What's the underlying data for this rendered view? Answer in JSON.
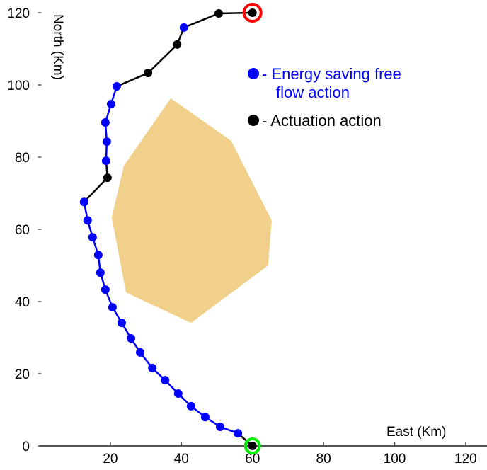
{
  "chart_data": {
    "type": "scatter",
    "xlabel": "East (Km)",
    "ylabel": "North (Km)",
    "xlim": [
      0,
      120
    ],
    "ylim": [
      0,
      120
    ],
    "xticks": [
      20,
      40,
      60,
      80,
      100,
      120
    ],
    "yticks": [
      0,
      20,
      40,
      60,
      80,
      100,
      120
    ],
    "legend": {
      "placement": "top-right",
      "entries": [
        {
          "label": "- Energy saving free",
          "label2": "flow action",
          "color": "#0000ff"
        },
        {
          "label": "- Actuation action",
          "color": "#000000"
        }
      ]
    },
    "start": {
      "x": 60,
      "y": 0,
      "ring_color": "#00ee00"
    },
    "goal": {
      "x": 60,
      "y": 120,
      "ring_color": "#ff0000"
    },
    "obstacle": {
      "color": "#f0d08a",
      "vertices": [
        [
          37,
          96.3
        ],
        [
          54,
          84.5
        ],
        [
          65.4,
          62.5
        ],
        [
          64.4,
          50
        ],
        [
          42.7,
          34.1
        ],
        [
          24.4,
          42.5
        ],
        [
          20.4,
          63.3
        ],
        [
          23.8,
          77.6
        ]
      ]
    },
    "path": [
      {
        "x": 60,
        "y": 0,
        "type": "actuation"
      },
      {
        "x": 55.9,
        "y": 3.5,
        "type": "free"
      },
      {
        "x": 50.9,
        "y": 5.3,
        "type": "free"
      },
      {
        "x": 46.7,
        "y": 8.0,
        "type": "free"
      },
      {
        "x": 42.7,
        "y": 11.0,
        "type": "free"
      },
      {
        "x": 39.1,
        "y": 14.5,
        "type": "free"
      },
      {
        "x": 35.4,
        "y": 18.2,
        "type": "free"
      },
      {
        "x": 31.8,
        "y": 21.6,
        "type": "free"
      },
      {
        "x": 28.4,
        "y": 25.9,
        "type": "free"
      },
      {
        "x": 25.8,
        "y": 29.8,
        "type": "free"
      },
      {
        "x": 23.2,
        "y": 34.1,
        "type": "free"
      },
      {
        "x": 20.6,
        "y": 38.4,
        "type": "free"
      },
      {
        "x": 18.6,
        "y": 43.3,
        "type": "free"
      },
      {
        "x": 17.2,
        "y": 48.0,
        "type": "free"
      },
      {
        "x": 16.6,
        "y": 52.9,
        "type": "free"
      },
      {
        "x": 15.0,
        "y": 57.8,
        "type": "free"
      },
      {
        "x": 13.6,
        "y": 62.5,
        "type": "free"
      },
      {
        "x": 12.6,
        "y": 67.6,
        "type": "free"
      },
      {
        "x": 19.2,
        "y": 74.3,
        "type": "actuation"
      },
      {
        "x": 18.8,
        "y": 79.0,
        "type": "free"
      },
      {
        "x": 19.0,
        "y": 84.3,
        "type": "free"
      },
      {
        "x": 18.6,
        "y": 89.6,
        "type": "free"
      },
      {
        "x": 20.2,
        "y": 94.7,
        "type": "free"
      },
      {
        "x": 21.8,
        "y": 99.6,
        "type": "free"
      },
      {
        "x": 30.6,
        "y": 103.3,
        "type": "actuation"
      },
      {
        "x": 38.8,
        "y": 111.2,
        "type": "actuation"
      },
      {
        "x": 40.7,
        "y": 115.9,
        "type": "free"
      },
      {
        "x": 50.5,
        "y": 119.8,
        "type": "actuation"
      },
      {
        "x": 60,
        "y": 120,
        "type": "actuation"
      }
    ]
  }
}
